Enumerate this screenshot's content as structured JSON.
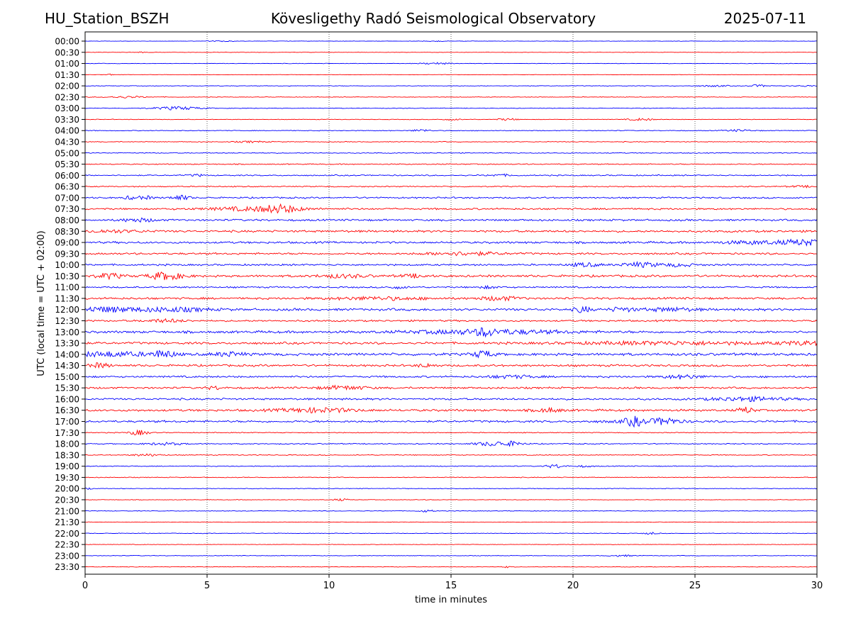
{
  "header": {
    "station": "HU_Station_BSZH",
    "title": "Kövesligethy Radó Seismological Observatory",
    "date": "2025-07-11"
  },
  "chart_data": {
    "type": "line",
    "title": "Kövesligethy Radó Seismological Observatory",
    "xlabel": "time in minutes",
    "ylabel": "UTC (local time = UTC + 02:00)",
    "xlim": [
      0,
      30
    ],
    "x_ticks": [
      0,
      5,
      10,
      15,
      20,
      25,
      30
    ],
    "grid": "vertical dotted",
    "trace_colors": [
      "#0000ff",
      "#ff0000"
    ],
    "rows": [
      {
        "label": "00:00",
        "noise": 0.25,
        "events": [
          [
            5.5,
            0.5,
            0.8
          ],
          [
            14.3,
            0.4,
            0.7
          ]
        ]
      },
      {
        "label": "00:30",
        "noise": 0.22,
        "events": [
          [
            2.3,
            0.3,
            0.6
          ]
        ]
      },
      {
        "label": "01:00",
        "noise": 0.3,
        "events": [
          [
            14.4,
            0.6,
            1.2
          ]
        ]
      },
      {
        "label": "01:30",
        "noise": 0.22,
        "events": [
          [
            1.0,
            0.2,
            1.0
          ]
        ]
      },
      {
        "label": "02:00",
        "noise": 0.35,
        "events": [
          [
            25.8,
            0.6,
            1.0
          ],
          [
            27.6,
            0.4,
            1.4
          ],
          [
            29.5,
            0.4,
            0.8
          ]
        ]
      },
      {
        "label": "02:30",
        "noise": 0.35,
        "events": [
          [
            1.7,
            0.8,
            1.2
          ]
        ]
      },
      {
        "label": "03:00",
        "noise": 0.35,
        "events": [
          [
            3.8,
            1.0,
            2.2
          ]
        ]
      },
      {
        "label": "03:30",
        "noise": 0.35,
        "events": [
          [
            15,
            0.4,
            1.0
          ],
          [
            17.3,
            0.4,
            1.4
          ],
          [
            22.8,
            0.5,
            1.5
          ]
        ]
      },
      {
        "label": "04:00",
        "noise": 0.45,
        "events": [
          [
            13.8,
            0.4,
            1.6
          ],
          [
            26.8,
            0.6,
            1.2
          ]
        ]
      },
      {
        "label": "04:30",
        "noise": 0.45,
        "events": [
          [
            6.8,
            0.6,
            1.0
          ]
        ]
      },
      {
        "label": "05:00",
        "noise": 0.5,
        "events": []
      },
      {
        "label": "05:30",
        "noise": 0.6,
        "events": []
      },
      {
        "label": "06:00",
        "noise": 0.7,
        "events": [
          [
            4.6,
            0.3,
            1.4
          ],
          [
            17,
            0.5,
            1.2
          ]
        ]
      },
      {
        "label": "06:30",
        "noise": 0.65,
        "events": [
          [
            29.4,
            0.6,
            1.0
          ]
        ]
      },
      {
        "label": "07:00",
        "noise": 0.9,
        "events": [
          [
            1.9,
            0.3,
            2.2
          ],
          [
            2.5,
            0.3,
            2.0
          ],
          [
            3.9,
            0.4,
            3.2
          ]
        ]
      },
      {
        "label": "07:30",
        "noise": 1.0,
        "events": [
          [
            7.0,
            2.0,
            2.4
          ],
          [
            8.0,
            0.7,
            4.0
          ]
        ]
      },
      {
        "label": "08:00",
        "noise": 1.1,
        "events": [
          [
            2.2,
            0.7,
            2.2
          ]
        ]
      },
      {
        "label": "08:30",
        "noise": 1.2,
        "events": [
          [
            1.0,
            1.5,
            1.6
          ]
        ]
      },
      {
        "label": "09:00",
        "noise": 1.2,
        "events": [
          [
            27.5,
            1.5,
            2.0
          ],
          [
            29.5,
            0.8,
            3.5
          ]
        ]
      },
      {
        "label": "09:30",
        "noise": 1.1,
        "events": [
          [
            15.5,
            1.5,
            2.2
          ]
        ]
      },
      {
        "label": "10:00",
        "noise": 1.0,
        "events": [
          [
            20.5,
            0.6,
            2.4
          ],
          [
            22.8,
            0.8,
            3.0
          ],
          [
            24.4,
            0.6,
            2.0
          ]
        ]
      },
      {
        "label": "10:30",
        "noise": 1.3,
        "events": [
          [
            1.0,
            0.5,
            3.5
          ],
          [
            3.3,
            0.7,
            5.0
          ],
          [
            10.5,
            1.0,
            2.0
          ],
          [
            13.5,
            0.5,
            2.0
          ]
        ]
      },
      {
        "label": "11:00",
        "noise": 0.9,
        "events": [
          [
            12.8,
            0.4,
            1.6
          ],
          [
            16.5,
            0.5,
            1.4
          ]
        ]
      },
      {
        "label": "11:30",
        "noise": 1.2,
        "events": [
          [
            17.0,
            0.8,
            2.6
          ],
          [
            12,
            2,
            1.8
          ]
        ]
      },
      {
        "label": "12:00",
        "noise": 1.4,
        "events": [
          [
            0.8,
            1.2,
            3.2
          ],
          [
            3.5,
            1.5,
            2.6
          ],
          [
            20.4,
            0.3,
            4.0
          ],
          [
            22.0,
            0.5,
            2.6
          ],
          [
            24.0,
            1.0,
            2.2
          ]
        ]
      },
      {
        "label": "12:30",
        "noise": 1.0,
        "events": [
          [
            3.3,
            0.8,
            2.0
          ]
        ]
      },
      {
        "label": "13:00",
        "noise": 1.4,
        "events": [
          [
            16.5,
            3.0,
            2.8
          ],
          [
            16.4,
            0.3,
            4.0
          ]
        ]
      },
      {
        "label": "13:30",
        "noise": 1.3,
        "events": [
          [
            24,
            4,
            1.8
          ],
          [
            29.5,
            1.0,
            2.0
          ]
        ]
      },
      {
        "label": "14:00",
        "noise": 1.5,
        "events": [
          [
            1.0,
            1.5,
            3.0
          ],
          [
            3.2,
            0.5,
            4.5
          ],
          [
            5.9,
            0.6,
            2.8
          ],
          [
            16.3,
            0.4,
            4.5
          ]
        ]
      },
      {
        "label": "14:30",
        "noise": 1.2,
        "events": [
          [
            0.6,
            0.4,
            3.0
          ],
          [
            14.0,
            0.4,
            2.0
          ]
        ]
      },
      {
        "label": "15:00",
        "noise": 1.1,
        "events": [
          [
            24.5,
            0.8,
            2.4
          ],
          [
            17.5,
            1,
            1.8
          ]
        ]
      },
      {
        "label": "15:30",
        "noise": 1.1,
        "events": [
          [
            10.6,
            1.0,
            2.4
          ],
          [
            5.3,
            0.3,
            2.0
          ]
        ]
      },
      {
        "label": "16:00",
        "noise": 1.1,
        "events": [
          [
            27.2,
            1.5,
            2.6
          ]
        ]
      },
      {
        "label": "16:30",
        "noise": 1.3,
        "events": [
          [
            9.5,
            1.5,
            2.8
          ],
          [
            27.1,
            0.3,
            4.0
          ],
          [
            19.0,
            0.5,
            2.6
          ]
        ]
      },
      {
        "label": "17:00",
        "noise": 1.2,
        "events": [
          [
            22.5,
            0.3,
            5.0
          ],
          [
            23.8,
            0.4,
            3.6
          ],
          [
            23,
            1.5,
            2.2
          ]
        ]
      },
      {
        "label": "17:30",
        "noise": 0.5,
        "events": [
          [
            2.2,
            0.4,
            3.5
          ]
        ]
      },
      {
        "label": "18:00",
        "noise": 0.6,
        "events": [
          [
            3.3,
            0.8,
            1.6
          ],
          [
            16.8,
            0.8,
            3.0
          ],
          [
            17.6,
            0.4,
            2.0
          ]
        ]
      },
      {
        "label": "18:30",
        "noise": 0.5,
        "events": [
          [
            2.5,
            0.6,
            1.4
          ]
        ]
      },
      {
        "label": "19:00",
        "noise": 0.5,
        "events": [
          [
            19.3,
            0.4,
            2.4
          ],
          [
            20.5,
            0.3,
            1.2
          ]
        ]
      },
      {
        "label": "19:30",
        "noise": 0.45,
        "events": []
      },
      {
        "label": "20:00",
        "noise": 0.4,
        "events": [
          [
            0.1,
            0.2,
            1.4
          ]
        ]
      },
      {
        "label": "20:30",
        "noise": 0.35,
        "events": [
          [
            10.5,
            0.3,
            1.4
          ]
        ]
      },
      {
        "label": "21:00",
        "noise": 0.35,
        "events": [
          [
            14.0,
            0.3,
            1.6
          ]
        ]
      },
      {
        "label": "21:30",
        "noise": 0.3,
        "events": []
      },
      {
        "label": "22:00",
        "noise": 0.35,
        "events": [
          [
            23.2,
            0.3,
            1.4
          ]
        ]
      },
      {
        "label": "22:30",
        "noise": 0.3,
        "events": []
      },
      {
        "label": "23:00",
        "noise": 0.35,
        "events": [
          [
            22,
            0.5,
            1.0
          ]
        ]
      },
      {
        "label": "23:30",
        "noise": 0.3,
        "events": [
          [
            17.3,
            0.2,
            1.2
          ]
        ]
      }
    ]
  }
}
